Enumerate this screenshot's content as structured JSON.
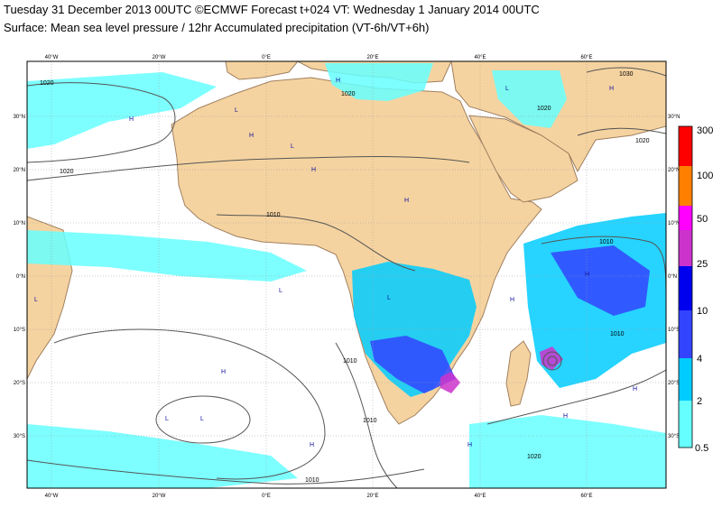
{
  "header": {
    "line1": "Tuesday 31 December 2013 00UTC ©ECMWF Forecast t+024 VT: Wednesday 1 January 2014 00UTC",
    "line2": "Surface: Mean sea level pressure / 12hr Accumulated precipitation (VT-6h/VT+6h)"
  },
  "axes": {
    "longitude_labels": [
      "40°W",
      "20°W",
      "0°E",
      "20°E",
      "40°E",
      "60°E"
    ],
    "latitude_labels": [
      "30°N",
      "20°N",
      "10°N",
      "0°N",
      "10°S",
      "20°S",
      "30°S"
    ]
  },
  "isobar_labels": [
    "1020",
    "1020",
    "1020",
    "1020",
    "1030",
    "1010",
    "1010",
    "1010",
    "1010",
    "1010",
    "1010",
    "1020",
    "1020"
  ],
  "pressure_centres": [
    "H",
    "H",
    "H",
    "H",
    "H",
    "H",
    "H",
    "H",
    "H",
    "H",
    "H",
    "H",
    "H",
    "L",
    "L",
    "L",
    "L",
    "L",
    "L",
    "L",
    "L"
  ],
  "legend": {
    "values": [
      "300",
      "100",
      "50",
      "25",
      "10",
      "4",
      "2",
      "0.5"
    ],
    "colors": [
      "#ff0000",
      "#ff8000",
      "#ff00ff",
      "#cc33cc",
      "#0000ee",
      "#3344ff",
      "#00ccff",
      "#66ffff"
    ]
  },
  "colors": {
    "land": "#f5d3a0",
    "ocean": "#ffffff",
    "graticule": "#9a9a9a",
    "isobar": "#555555",
    "precip_light": "#66ffff",
    "precip_moderate": "#00ccff",
    "precip_heavy": "#3344ff",
    "precip_very_heavy": "#cc33cc"
  }
}
